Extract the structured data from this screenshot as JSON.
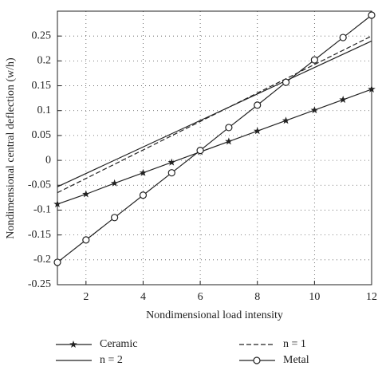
{
  "chart_data": {
    "type": "line",
    "xlabel": "Nondimensional load intensity",
    "ylabel": "Nondimensional central deflection (w/h)",
    "xlim": [
      1,
      12
    ],
    "xticks": [
      2,
      4,
      6,
      8,
      10,
      12
    ],
    "ylim": [
      -0.25,
      0.3
    ],
    "yticks": [
      -0.25,
      -0.2,
      -0.15,
      -0.1,
      -0.05,
      0,
      0.05,
      0.1,
      0.15,
      0.2,
      0.25
    ],
    "grid": true,
    "series": [
      {
        "name": "Ceramic",
        "color": "#222222",
        "marker": "star",
        "dash": "solid",
        "x": [
          1,
          2,
          3,
          4,
          5,
          6,
          7,
          8,
          9,
          10,
          11,
          12
        ],
        "values": [
          -0.088,
          -0.068,
          -0.046,
          -0.025,
          -0.004,
          0.017,
          0.038,
          0.059,
          0.08,
          0.101,
          0.122,
          0.143
        ]
      },
      {
        "name": "n = 1",
        "color": "#222222",
        "marker": "none",
        "dash": "dashed",
        "x": [
          1,
          12
        ],
        "values": [
          -0.065,
          0.25
        ]
      },
      {
        "name": "n = 2",
        "color": "#222222",
        "marker": "none",
        "dash": "solid",
        "x": [
          1,
          12
        ],
        "values": [
          -0.053,
          0.24
        ]
      },
      {
        "name": "Metal",
        "color": "#222222",
        "marker": "circle",
        "dash": "solid",
        "x": [
          1,
          2,
          3,
          4,
          5,
          6,
          7,
          8,
          9,
          10,
          11,
          12
        ],
        "values": [
          -0.205,
          -0.16,
          -0.115,
          -0.07,
          -0.025,
          0.02,
          0.066,
          0.111,
          0.157,
          0.202,
          0.247,
          0.292
        ]
      }
    ]
  }
}
